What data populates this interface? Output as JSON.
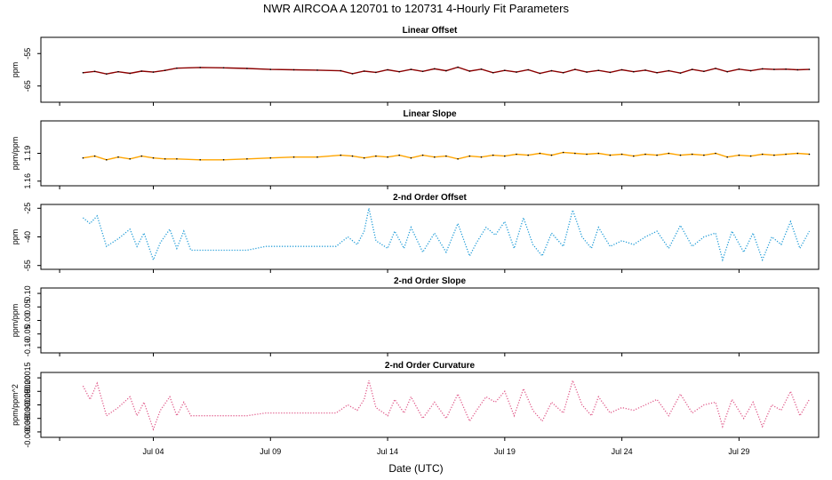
{
  "chart_data": {
    "type": "line",
    "title": "NWR   AIRCOA A   120701 to 120731   4-Hourly Fit Parameters",
    "xlabel": "Date (UTC)",
    "x_range_days": [
      -0.8,
      32.4
    ],
    "x_ticks": [
      {
        "day": 4,
        "label": "Jul 04"
      },
      {
        "day": 9,
        "label": "Jul 09"
      },
      {
        "day": 14,
        "label": "Jul 14"
      },
      {
        "day": 19,
        "label": "Jul 19"
      },
      {
        "day": 24,
        "label": "Jul 24"
      },
      {
        "day": 29,
        "label": "Jul 29"
      }
    ],
    "panels": [
      {
        "title": "Linear Offset",
        "ylabel": "ppm",
        "ylim": [
          -70,
          -50
        ],
        "yticks": [
          {
            "v": -55,
            "label": "-55"
          },
          {
            "v": -65,
            "label": "-65"
          }
        ],
        "line_color": "#8b0000",
        "point_color": "#000000",
        "series": [
          [
            1,
            -60.9
          ],
          [
            1.5,
            -60.5
          ],
          [
            2,
            -61.3
          ],
          [
            2.5,
            -60.6
          ],
          [
            3,
            -61.1
          ],
          [
            3.5,
            -60.4
          ],
          [
            4,
            -60.7
          ],
          [
            4.5,
            -60.2
          ],
          [
            5,
            -59.5
          ],
          [
            6,
            -59.3
          ],
          [
            7,
            -59.4
          ],
          [
            8,
            -59.6
          ],
          [
            9,
            -59.9
          ],
          [
            10,
            -60.0
          ],
          [
            11,
            -60.1
          ],
          [
            12,
            -60.3
          ],
          [
            12.5,
            -61.2
          ],
          [
            13,
            -60.4
          ],
          [
            13.5,
            -60.8
          ],
          [
            14,
            -60.0
          ],
          [
            14.5,
            -60.6
          ],
          [
            15,
            -59.9
          ],
          [
            15.5,
            -60.5
          ],
          [
            16,
            -59.7
          ],
          [
            16.5,
            -60.3
          ],
          [
            17,
            -59.2
          ],
          [
            17.5,
            -60.4
          ],
          [
            18,
            -59.8
          ],
          [
            18.5,
            -60.9
          ],
          [
            19,
            -60.2
          ],
          [
            19.5,
            -60.7
          ],
          [
            20,
            -60.0
          ],
          [
            20.5,
            -61.1
          ],
          [
            21,
            -60.3
          ],
          [
            21.5,
            -60.9
          ],
          [
            22,
            -59.9
          ],
          [
            22.5,
            -60.7
          ],
          [
            23,
            -60.2
          ],
          [
            23.5,
            -60.8
          ],
          [
            24,
            -60.0
          ],
          [
            24.5,
            -60.6
          ],
          [
            25,
            -60.1
          ],
          [
            25.5,
            -60.9
          ],
          [
            26,
            -60.3
          ],
          [
            26.5,
            -61.0
          ],
          [
            27,
            -59.9
          ],
          [
            27.5,
            -60.5
          ],
          [
            28,
            -59.6
          ],
          [
            28.5,
            -60.6
          ],
          [
            29,
            -59.8
          ],
          [
            29.5,
            -60.3
          ],
          [
            30,
            -59.7
          ],
          [
            30.5,
            -59.9
          ],
          [
            31,
            -59.8
          ],
          [
            31.5,
            -60.0
          ],
          [
            32,
            -59.9
          ]
        ]
      },
      {
        "title": "Linear Slope",
        "ylabel": "ppm/ppm",
        "ylim": [
          1.155,
          1.225
        ],
        "yticks": [
          {
            "v": 1.16,
            "label": "1.16"
          },
          {
            "v": 1.19,
            "label": "1.19"
          }
        ],
        "line_color": "#ffa500",
        "point_color": "#000000",
        "series": [
          [
            1,
            1.185
          ],
          [
            1.5,
            1.187
          ],
          [
            2,
            1.183
          ],
          [
            2.5,
            1.186
          ],
          [
            3,
            1.184
          ],
          [
            3.5,
            1.187
          ],
          [
            4,
            1.185
          ],
          [
            4.5,
            1.184
          ],
          [
            5,
            1.184
          ],
          [
            6,
            1.183
          ],
          [
            7,
            1.183
          ],
          [
            8,
            1.184
          ],
          [
            9,
            1.185
          ],
          [
            10,
            1.186
          ],
          [
            11,
            1.186
          ],
          [
            12,
            1.188
          ],
          [
            12.5,
            1.187
          ],
          [
            13,
            1.185
          ],
          [
            13.5,
            1.187
          ],
          [
            14,
            1.186
          ],
          [
            14.5,
            1.188
          ],
          [
            15,
            1.185
          ],
          [
            15.5,
            1.188
          ],
          [
            16,
            1.186
          ],
          [
            16.5,
            1.187
          ],
          [
            17,
            1.184
          ],
          [
            17.5,
            1.187
          ],
          [
            18,
            1.186
          ],
          [
            18.5,
            1.188
          ],
          [
            19,
            1.187
          ],
          [
            19.5,
            1.189
          ],
          [
            20,
            1.188
          ],
          [
            20.5,
            1.19
          ],
          [
            21,
            1.188
          ],
          [
            21.5,
            1.191
          ],
          [
            22,
            1.19
          ],
          [
            22.5,
            1.189
          ],
          [
            23,
            1.19
          ],
          [
            23.5,
            1.188
          ],
          [
            24,
            1.189
          ],
          [
            24.5,
            1.187
          ],
          [
            25,
            1.189
          ],
          [
            25.5,
            1.188
          ],
          [
            26,
            1.19
          ],
          [
            26.5,
            1.188
          ],
          [
            27,
            1.189
          ],
          [
            27.5,
            1.188
          ],
          [
            28,
            1.19
          ],
          [
            28.5,
            1.186
          ],
          [
            29,
            1.188
          ],
          [
            29.5,
            1.187
          ],
          [
            30,
            1.189
          ],
          [
            30.5,
            1.188
          ],
          [
            31,
            1.189
          ],
          [
            31.5,
            1.19
          ],
          [
            32,
            1.189
          ]
        ]
      },
      {
        "title": "2-nd Order Offset",
        "ylabel": "ppm",
        "ylim": [
          -57,
          -23
        ],
        "yticks": [
          {
            "v": -25,
            "label": "-25"
          },
          {
            "v": -40,
            "label": "-40"
          },
          {
            "v": -55,
            "label": "-55"
          }
        ],
        "line_color": "#1e9bd7",
        "point_color": "#1e9bd7",
        "series": [
          [
            1,
            -30
          ],
          [
            1.3,
            -33
          ],
          [
            1.6,
            -29
          ],
          [
            2,
            -45
          ],
          [
            2.5,
            -41
          ],
          [
            3,
            -36
          ],
          [
            3.3,
            -45
          ],
          [
            3.6,
            -38
          ],
          [
            4,
            -52
          ],
          [
            4.3,
            -43
          ],
          [
            4.7,
            -36
          ],
          [
            5,
            -46
          ],
          [
            5.3,
            -37
          ],
          [
            5.6,
            -47
          ],
          [
            6,
            -47
          ],
          [
            7,
            -47
          ],
          [
            8,
            -47
          ],
          [
            8.8,
            -45
          ],
          [
            10,
            -45
          ],
          [
            11,
            -45
          ],
          [
            11.8,
            -45
          ],
          [
            12.3,
            -40
          ],
          [
            12.7,
            -44
          ],
          [
            13,
            -37
          ],
          [
            13.2,
            -25
          ],
          [
            13.5,
            -42
          ],
          [
            14,
            -46
          ],
          [
            14.3,
            -37
          ],
          [
            14.7,
            -46
          ],
          [
            15,
            -35
          ],
          [
            15.5,
            -48
          ],
          [
            16,
            -38
          ],
          [
            16.5,
            -48
          ],
          [
            17,
            -33
          ],
          [
            17.5,
            -50
          ],
          [
            17.8,
            -43
          ],
          [
            18.2,
            -35
          ],
          [
            18.6,
            -39
          ],
          [
            19,
            -32
          ],
          [
            19.4,
            -46
          ],
          [
            19.8,
            -30
          ],
          [
            20.2,
            -44
          ],
          [
            20.6,
            -50
          ],
          [
            21,
            -38
          ],
          [
            21.5,
            -45
          ],
          [
            21.9,
            -26
          ],
          [
            22.3,
            -40
          ],
          [
            22.7,
            -46
          ],
          [
            23,
            -35
          ],
          [
            23.5,
            -45
          ],
          [
            24,
            -42
          ],
          [
            24.5,
            -44
          ],
          [
            25,
            -40
          ],
          [
            25.5,
            -37
          ],
          [
            26,
            -46
          ],
          [
            26.5,
            -34
          ],
          [
            27,
            -45
          ],
          [
            27.5,
            -40
          ],
          [
            28,
            -38
          ],
          [
            28.3,
            -52
          ],
          [
            28.7,
            -37
          ],
          [
            29.2,
            -48
          ],
          [
            29.6,
            -38
          ],
          [
            30,
            -52
          ],
          [
            30.4,
            -40
          ],
          [
            30.8,
            -44
          ],
          [
            31.2,
            -32
          ],
          [
            31.6,
            -46
          ],
          [
            32,
            -37
          ]
        ]
      },
      {
        "title": "2-nd Order Slope",
        "ylabel": "ppm/ppm",
        "ylim": [
          -0.12,
          0.12
        ],
        "yticks": [
          {
            "v": 0.1,
            "label": "0.10"
          },
          {
            "v": 0.05,
            "label": "0.05"
          },
          {
            "v": 0.0,
            "label": "0.00"
          },
          {
            "v": -0.05,
            "label": "-0.05"
          },
          {
            "v": -0.1,
            "label": "-0.10"
          }
        ],
        "line_color": "#000000",
        "point_color": "#000000",
        "series": []
      },
      {
        "title": "2-nd Order Curvature",
        "ylabel": "ppm/ppm^2",
        "ylim": [
          -0.00037,
          -0.00013
        ],
        "yticks": [
          {
            "v": -0.00015,
            "label": "-0.00015"
          },
          {
            "v": -0.0002,
            "label": "-0.00020"
          },
          {
            "v": -0.00025,
            "label": "-0.00025"
          },
          {
            "v": -0.0003,
            "label": "-0.00030"
          },
          {
            "v": -0.00035,
            "label": "-0.00035"
          }
        ],
        "line_color": "#e05a8a",
        "point_color": "#e05a8a",
        "series": [
          [
            1,
            -0.00018
          ],
          [
            1.3,
            -0.00023
          ],
          [
            1.6,
            -0.00017
          ],
          [
            2,
            -0.00029
          ],
          [
            2.5,
            -0.00026
          ],
          [
            3,
            -0.00022
          ],
          [
            3.3,
            -0.00029
          ],
          [
            3.6,
            -0.00024
          ],
          [
            4,
            -0.00034
          ],
          [
            4.3,
            -0.00027
          ],
          [
            4.7,
            -0.00022
          ],
          [
            5,
            -0.00029
          ],
          [
            5.3,
            -0.00024
          ],
          [
            5.6,
            -0.00029
          ],
          [
            6,
            -0.00029
          ],
          [
            7,
            -0.00029
          ],
          [
            8,
            -0.00029
          ],
          [
            8.8,
            -0.00028
          ],
          [
            10,
            -0.00028
          ],
          [
            11,
            -0.00028
          ],
          [
            11.8,
            -0.00028
          ],
          [
            12.3,
            -0.00025
          ],
          [
            12.7,
            -0.00027
          ],
          [
            13,
            -0.00023
          ],
          [
            13.2,
            -0.00016
          ],
          [
            13.5,
            -0.00026
          ],
          [
            14,
            -0.00029
          ],
          [
            14.3,
            -0.00023
          ],
          [
            14.7,
            -0.00028
          ],
          [
            15,
            -0.00022
          ],
          [
            15.5,
            -0.0003
          ],
          [
            16,
            -0.00024
          ],
          [
            16.5,
            -0.0003
          ],
          [
            17,
            -0.00021
          ],
          [
            17.5,
            -0.00031
          ],
          [
            17.8,
            -0.00027
          ],
          [
            18.2,
            -0.00022
          ],
          [
            18.6,
            -0.00024
          ],
          [
            19,
            -0.0002
          ],
          [
            19.4,
            -0.00029
          ],
          [
            19.8,
            -0.00019
          ],
          [
            20.2,
            -0.00027
          ],
          [
            20.6,
            -0.00031
          ],
          [
            21,
            -0.00024
          ],
          [
            21.5,
            -0.00028
          ],
          [
            21.9,
            -0.00016
          ],
          [
            22.3,
            -0.00025
          ],
          [
            22.7,
            -0.00029
          ],
          [
            23,
            -0.00022
          ],
          [
            23.5,
            -0.00028
          ],
          [
            24,
            -0.00026
          ],
          [
            24.5,
            -0.00027
          ],
          [
            25,
            -0.00025
          ],
          [
            25.5,
            -0.00023
          ],
          [
            26,
            -0.00029
          ],
          [
            26.5,
            -0.00021
          ],
          [
            27,
            -0.00028
          ],
          [
            27.5,
            -0.00025
          ],
          [
            28,
            -0.00024
          ],
          [
            28.3,
            -0.00033
          ],
          [
            28.7,
            -0.00023
          ],
          [
            29.2,
            -0.0003
          ],
          [
            29.6,
            -0.00024
          ],
          [
            30,
            -0.00033
          ],
          [
            30.4,
            -0.00025
          ],
          [
            30.8,
            -0.00027
          ],
          [
            31.2,
            -0.0002
          ],
          [
            31.6,
            -0.00029
          ],
          [
            32,
            -0.00023
          ]
        ]
      }
    ]
  }
}
